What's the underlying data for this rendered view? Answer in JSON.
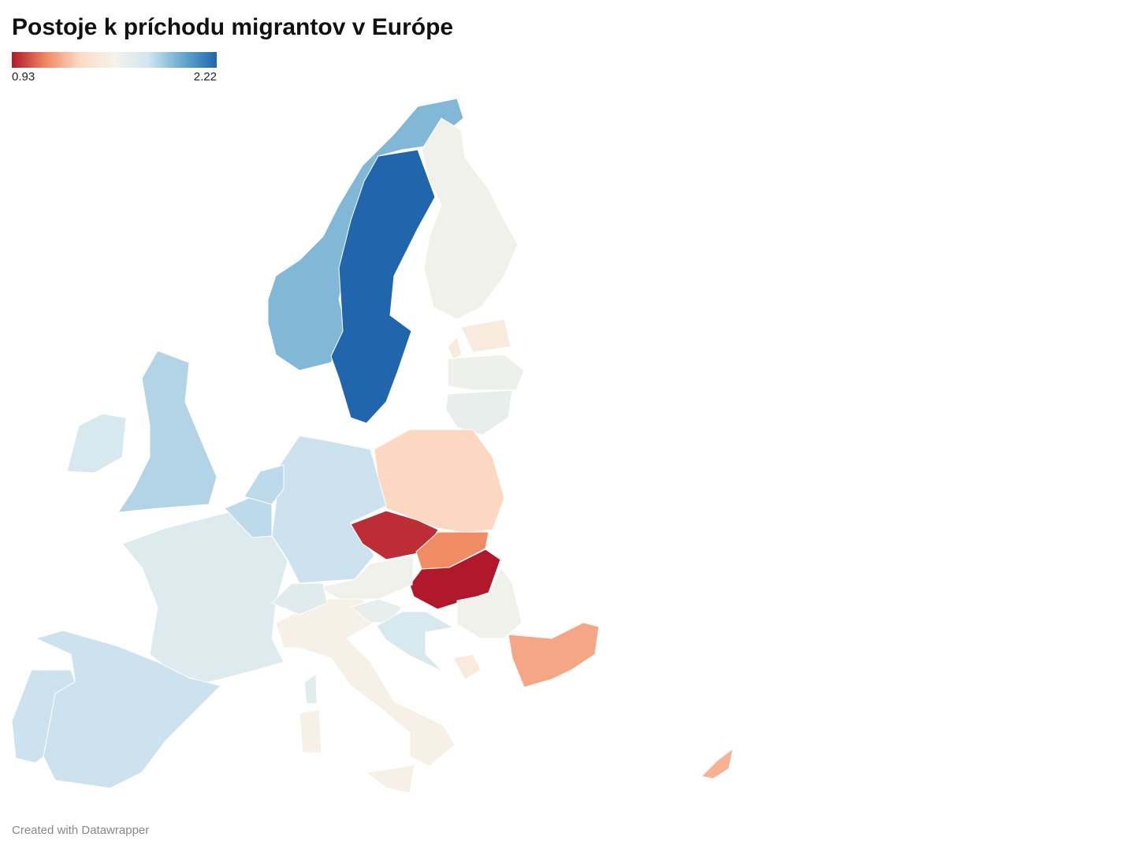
{
  "chart_data": {
    "type": "choropleth",
    "title": "Postoje k príchodu migrantov v Európe",
    "scale": [
      0.93,
      2.22
    ],
    "colors": [
      "#b2182b",
      "#ef8a62",
      "#fddbc7",
      "#f5f3ea",
      "#d1e5f0",
      "#67a9cf",
      "#2166ac"
    ],
    "values": [
      1.95,
      2.22,
      1.6,
      1.5,
      1.62,
      1.65,
      1.35,
      1.8,
      0.97,
      1.15,
      0.93,
      1.6,
      1.85,
      1.75,
      1.72,
      1.68,
      1.83,
      1.83,
      1.8,
      1.8,
      1.55,
      1.55,
      1.55,
      1.65,
      1.7,
      1.6,
      1.22,
      1.5,
      1.25,
      1.5,
      1.75
    ],
    "footer": "Created with Datawrapper"
  }
}
